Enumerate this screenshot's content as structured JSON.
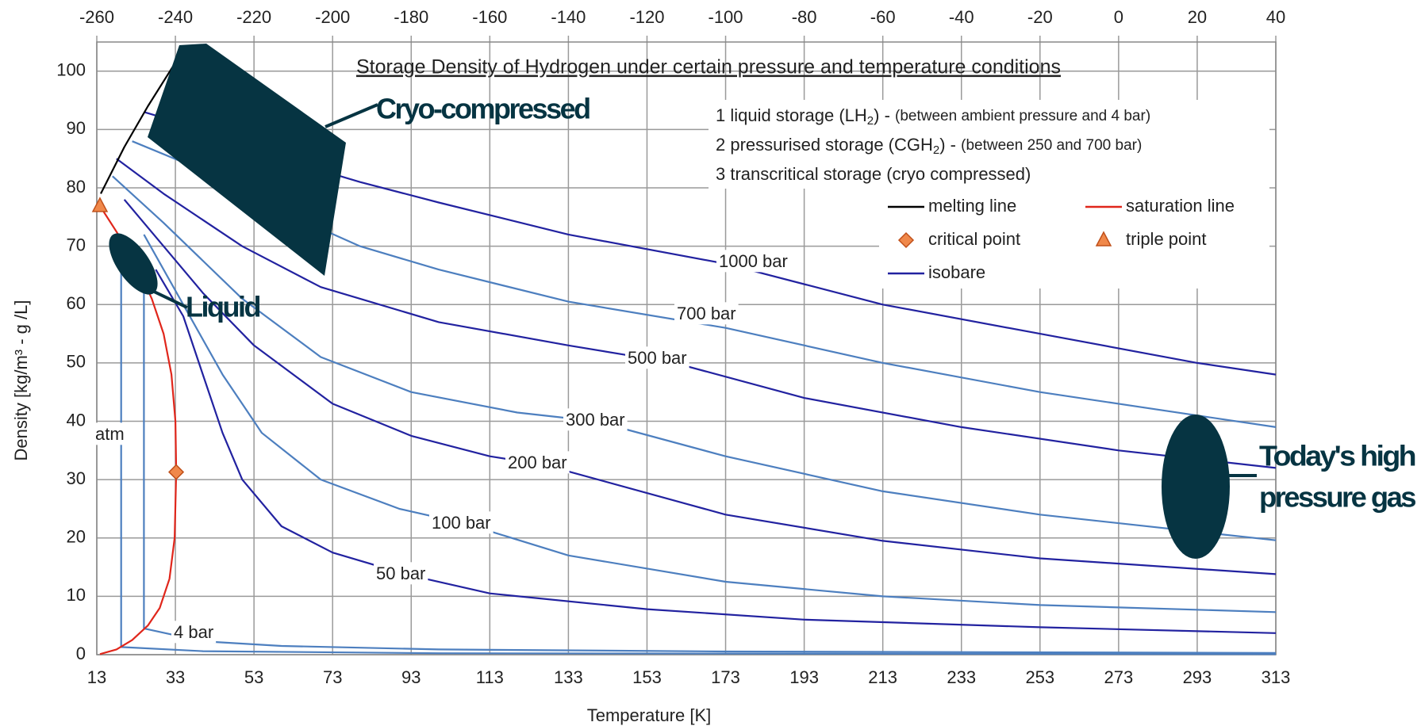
{
  "chart_data": {
    "type": "line",
    "title": "Storage Density of Hydrogen under certain pressure and temperature conditions",
    "x_label": "Temperature [K]",
    "y_label": "Density [kg/m³  -  g /L]",
    "xlim": [
      13,
      313
    ],
    "xticks": [
      13,
      33,
      53,
      73,
      93,
      113,
      133,
      153,
      173,
      193,
      213,
      233,
      253,
      273,
      293,
      313
    ],
    "x2lim": [
      -260,
      40
    ],
    "x2ticks": [
      -260,
      -240,
      -220,
      -200,
      -180,
      -160,
      -140,
      -120,
      -100,
      -80,
      -60,
      -40,
      -20,
      0,
      20,
      40
    ],
    "ylim": [
      0,
      105
    ],
    "yticks": [
      0,
      10,
      20,
      30,
      40,
      50,
      60,
      70,
      80,
      90,
      100
    ],
    "grid": true,
    "notes": [
      {
        "text": "1 liquid storage (LH",
        "sub": "2",
        "rest": ") - ",
        "detail": "(between ambient pressure and 4 bar)"
      },
      {
        "text": "2 pressurised storage (CGH",
        "sub": "2",
        "rest": ") - ",
        "detail": "(between 250 and 700 bar)"
      },
      {
        "text": "3 transcritical storage (cryo compressed)"
      }
    ],
    "isobar_legend": "isobare",
    "isobar_color": "#2222a0",
    "series": [
      {
        "name": "1000 bar",
        "color": "#2222a0",
        "x": [
          25,
          40,
          60,
          80,
          100,
          133,
          173,
          213,
          253,
          293,
          313
        ],
        "values": [
          93,
          90,
          85,
          81,
          77.5,
          72,
          67,
          60,
          55,
          50,
          48
        ]
      },
      {
        "name": "700 bar",
        "color": "#4d7fbf",
        "x": [
          22,
          40,
          60,
          80,
          100,
          133,
          173,
          213,
          253,
          293,
          313
        ],
        "values": [
          88,
          83,
          76,
          70,
          66,
          60.5,
          56,
          50,
          45,
          41,
          39
        ]
      },
      {
        "name": "500 bar",
        "color": "#2222a0",
        "x": [
          18,
          30,
          50,
          70,
          100,
          133,
          160,
          193,
          233,
          273,
          313
        ],
        "values": [
          85,
          79,
          70,
          63,
          57,
          53,
          50,
          44,
          39,
          35,
          32
        ]
      },
      {
        "name": "300 bar",
        "color": "#4d7fbf",
        "x": [
          17,
          30,
          50,
          70,
          93,
          120,
          140,
          173,
          213,
          253,
          313
        ],
        "values": [
          82,
          74,
          61,
          51,
          45,
          41.5,
          40,
          34,
          28,
          24,
          19.6
        ]
      },
      {
        "name": "200 bar",
        "color": "#2222a0",
        "x": [
          20,
          30,
          40,
          53,
          73,
          93,
          113,
          127,
          173,
          213,
          253,
          313
        ],
        "values": [
          78,
          70,
          62,
          53,
          43,
          37.5,
          34,
          32.5,
          24,
          19.5,
          16.5,
          13.8
        ]
      },
      {
        "name": "100 bar",
        "color": "#4d7fbf",
        "x": [
          25,
          35,
          45,
          55,
          70,
          90,
          107,
          133,
          173,
          213,
          253,
          313
        ],
        "values": [
          72,
          60,
          48,
          38,
          30,
          25,
          22.4,
          17,
          12.5,
          10,
          8.5,
          7.3
        ]
      },
      {
        "name": "50 bar",
        "color": "#2222a0",
        "x": [
          28,
          35,
          40,
          45,
          50,
          60,
          73,
          92,
          113,
          153,
          193,
          253,
          313
        ],
        "values": [
          66,
          58,
          48,
          38,
          30,
          22,
          17.5,
          13.7,
          10.5,
          7.8,
          6,
          4.7,
          3.7
        ]
      },
      {
        "name": "4 bar",
        "color": "#4d7fbf",
        "x": [
          25,
          25,
          40,
          60,
          100,
          173,
          313
        ],
        "values": [
          62,
          4.5,
          2.3,
          1.5,
          0.9,
          0.55,
          0.3
        ]
      },
      {
        "name": "atm",
        "color": "#4d7fbf",
        "x": [
          19.2,
          19.2,
          40,
          100,
          313
        ],
        "values": [
          70,
          1.3,
          0.6,
          0.25,
          0.08
        ]
      },
      {
        "name": "melting line",
        "color": "#000000",
        "x": [
          14,
          20,
          26,
          33
        ],
        "values": [
          79,
          87,
          94,
          101.5
        ]
      },
      {
        "name": "saturation line",
        "color": "#e0261b",
        "x": [
          13.8,
          18,
          22,
          26,
          29,
          31.5,
          32.8,
          33.2,
          33,
          32,
          30,
          27,
          23,
          18,
          13.8
        ],
        "values": [
          0.1,
          0.9,
          2.5,
          5,
          8,
          13,
          20,
          31.3,
          40,
          48,
          55,
          61,
          67,
          72.5,
          76.9
        ]
      }
    ],
    "points": [
      {
        "name": "critical point",
        "x": 33.2,
        "values": 31.3,
        "color": "#f0884a",
        "symbol": "diamond"
      },
      {
        "name": "triple point",
        "x": 13.8,
        "values": 76.9,
        "color": "#f0884a",
        "symbol": "triangle"
      }
    ],
    "annotations": [
      "Cryo-compressed",
      "Liquid",
      "Today's high",
      "pressure gas"
    ]
  }
}
